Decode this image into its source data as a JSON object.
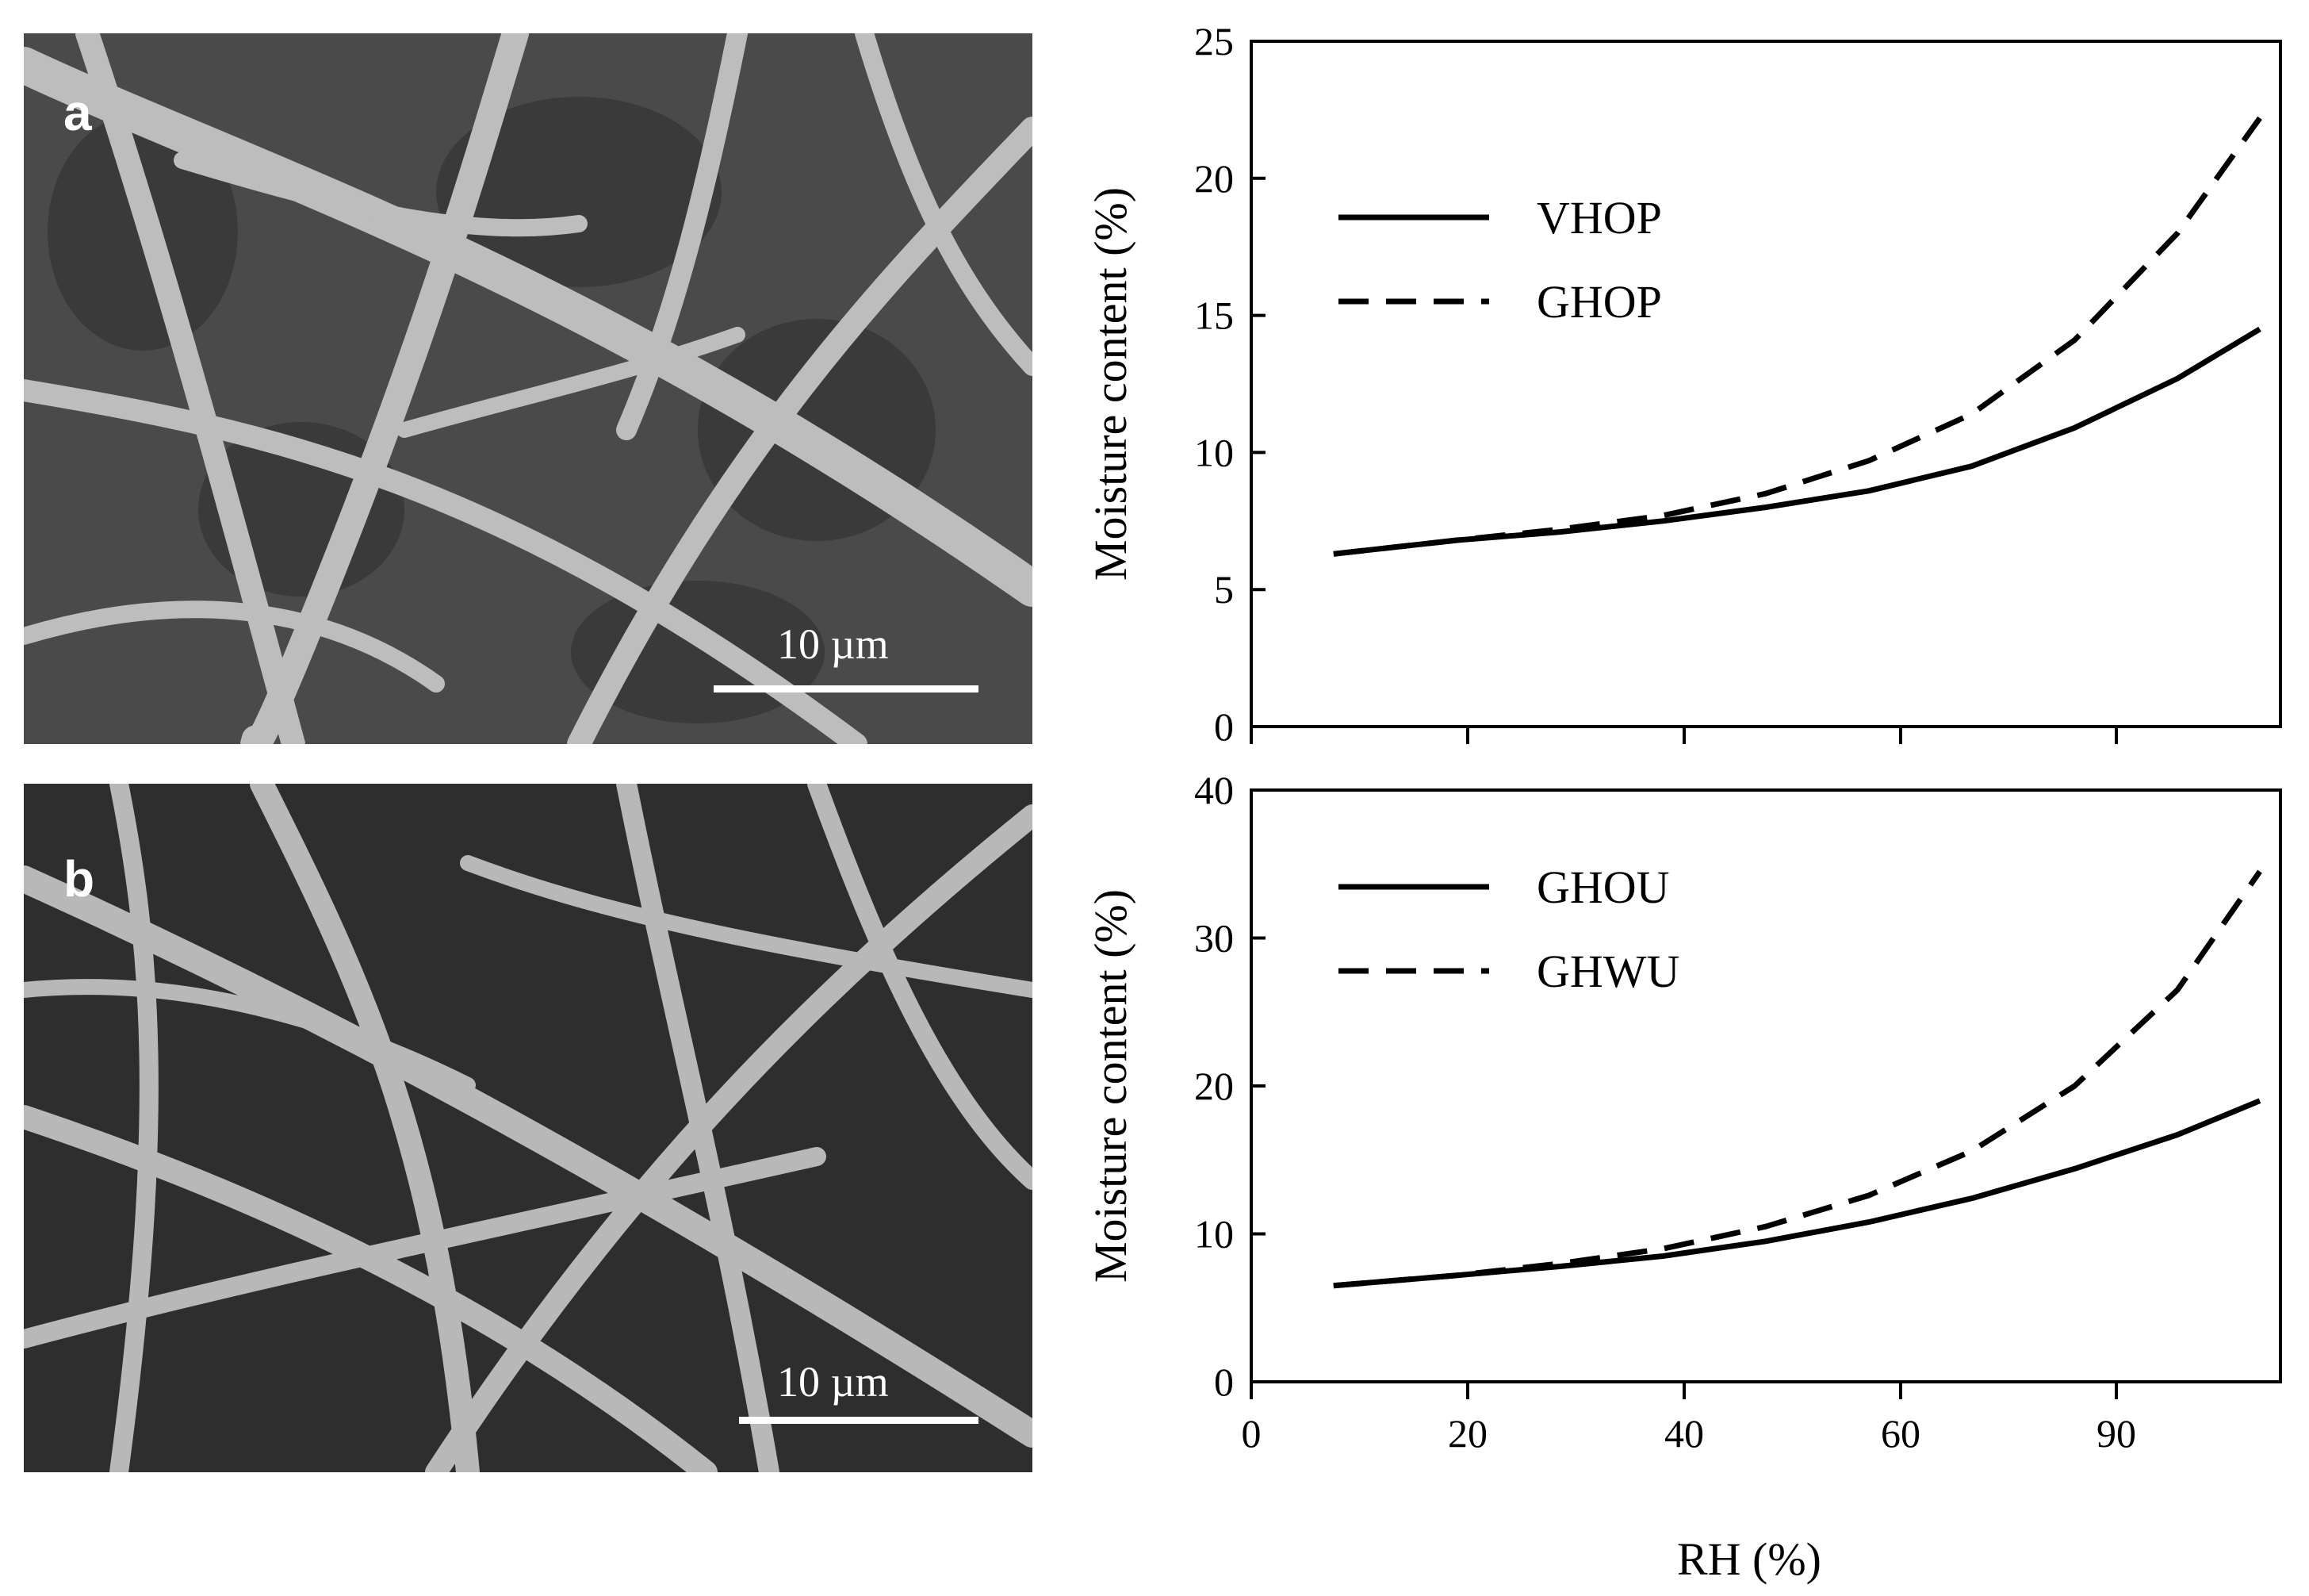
{
  "images": [
    {
      "panel_label": "a",
      "scale_bar": "10 µm",
      "icon": "sem-micrograph-fibers"
    },
    {
      "panel_label": "b",
      "scale_bar": "10 µm",
      "icon": "sem-micrograph-fibers"
    }
  ],
  "chart_data": [
    {
      "type": "line",
      "ylabel": "Moisture content (%)",
      "xlabel": "",
      "ylim": [
        0,
        25
      ],
      "xlim": [
        0,
        100
      ],
      "yticks": [
        0,
        5,
        10,
        15,
        20,
        25
      ],
      "xticks": [],
      "legend_position": "top-left",
      "series": [
        {
          "name": "VHOP",
          "style": "solid",
          "x": [
            8,
            20,
            30,
            40,
            50,
            60,
            70,
            80,
            90,
            98
          ],
          "y": [
            6.3,
            6.8,
            7.1,
            7.5,
            8.0,
            8.6,
            9.5,
            10.9,
            12.7,
            14.5
          ]
        },
        {
          "name": "GHOP",
          "style": "dashed",
          "x": [
            8,
            20,
            30,
            40,
            50,
            60,
            70,
            80,
            90,
            98
          ],
          "y": [
            6.3,
            6.8,
            7.2,
            7.7,
            8.5,
            9.7,
            11.4,
            14.1,
            18.0,
            22.2
          ]
        }
      ]
    },
    {
      "type": "line",
      "ylabel": "Moisture content (%)",
      "xlabel": "RH (%)",
      "ylim": [
        0,
        40
      ],
      "xlim": [
        0,
        100
      ],
      "yticks": [
        0,
        10,
        20,
        30,
        40
      ],
      "xticks": [
        0,
        20,
        40,
        60,
        90
      ],
      "legend_position": "top-left",
      "series": [
        {
          "name": "GHOU",
          "style": "solid",
          "x": [
            8,
            20,
            30,
            40,
            50,
            60,
            70,
            80,
            90,
            98
          ],
          "y": [
            6.5,
            7.2,
            7.8,
            8.5,
            9.5,
            10.8,
            12.4,
            14.4,
            16.7,
            19.0
          ]
        },
        {
          "name": "GHWU",
          "style": "dashed",
          "x": [
            8,
            20,
            30,
            40,
            50,
            60,
            70,
            80,
            90,
            98
          ],
          "y": [
            6.5,
            7.2,
            8.0,
            9.0,
            10.5,
            12.6,
            15.6,
            20.0,
            26.5,
            34.5
          ]
        }
      ]
    }
  ]
}
